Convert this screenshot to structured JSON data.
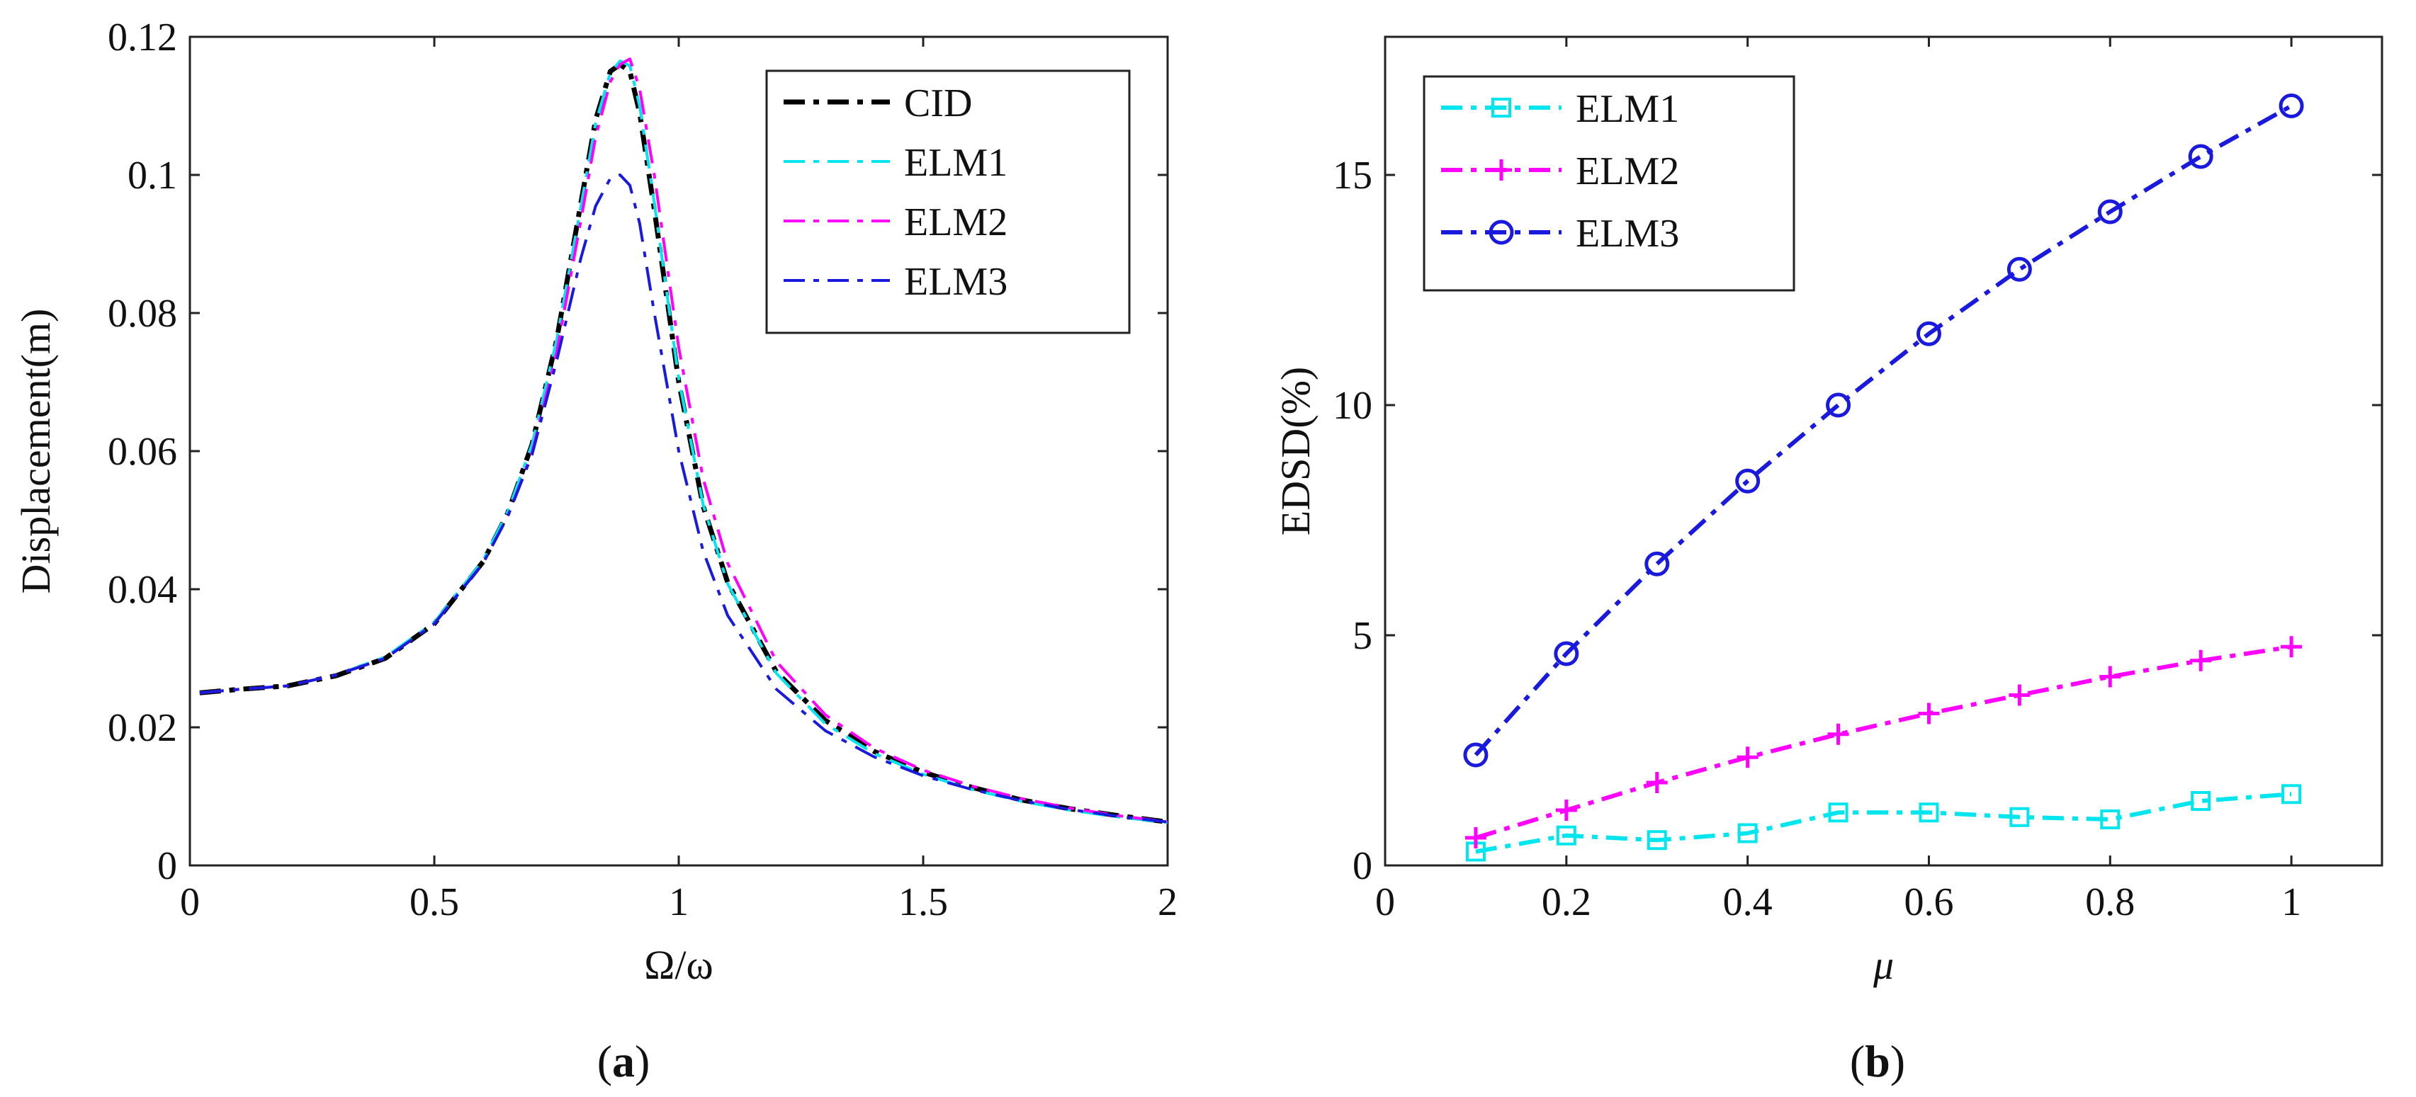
{
  "chart_data": [
    {
      "type": "line",
      "caption_letter": "a",
      "xlabel": "Ω/ω",
      "ylabel": "Displacement(m)",
      "xlim": [
        0,
        2
      ],
      "ylim": [
        0,
        0.12
      ],
      "xticks": [
        0,
        0.5,
        1,
        1.5,
        2
      ],
      "xtick_labels": [
        "0",
        "0.5",
        "1",
        "1.5",
        "2"
      ],
      "yticks": [
        0,
        0.02,
        0.04,
        0.06,
        0.08,
        0.1,
        0.12
      ],
      "ytick_labels": [
        "0",
        "0.02",
        "0.04",
        "0.06",
        "0.08",
        "0.1",
        "0.12"
      ],
      "legend_position": "top-right",
      "grid": false,
      "x": [
        0.02,
        0.1,
        0.2,
        0.3,
        0.4,
        0.5,
        0.6,
        0.65,
        0.7,
        0.75,
        0.8,
        0.83,
        0.86,
        0.88,
        0.9,
        0.92,
        0.95,
        1.0,
        1.05,
        1.1,
        1.2,
        1.3,
        1.4,
        1.5,
        1.6,
        1.7,
        1.8,
        1.9,
        2.0
      ],
      "series": [
        {
          "name": "CID",
          "color": "#000000",
          "dash": "dashdot",
          "width": 7,
          "values": [
            0.025,
            0.0255,
            0.026,
            0.0275,
            0.03,
            0.035,
            0.044,
            0.051,
            0.061,
            0.076,
            0.096,
            0.108,
            0.115,
            0.116,
            0.115,
            0.109,
            0.095,
            0.07,
            0.052,
            0.041,
            0.028,
            0.021,
            0.0165,
            0.0135,
            0.0113,
            0.0095,
            0.0082,
            0.0072,
            0.0063
          ]
        },
        {
          "name": "ELM1",
          "color": "#00e5ee",
          "dash": "dashdot",
          "width": 4,
          "values": [
            0.025,
            0.0255,
            0.026,
            0.0276,
            0.0302,
            0.0352,
            0.0442,
            0.0512,
            0.061,
            0.076,
            0.0955,
            0.1075,
            0.1148,
            0.1165,
            0.1158,
            0.11,
            0.096,
            0.0705,
            0.0522,
            0.0408,
            0.0278,
            0.0205,
            0.0162,
            0.0132,
            0.011,
            0.0093,
            0.008,
            0.007,
            0.0062
          ]
        },
        {
          "name": "ELM2",
          "color": "#ff00ff",
          "dash": "dashdot",
          "width": 4,
          "values": [
            0.025,
            0.0255,
            0.026,
            0.0276,
            0.03,
            0.035,
            0.0438,
            0.0505,
            0.0598,
            0.0742,
            0.0935,
            0.1055,
            0.1135,
            0.116,
            0.1168,
            0.1125,
            0.1,
            0.075,
            0.056,
            0.0438,
            0.0295,
            0.0218,
            0.017,
            0.0138,
            0.0115,
            0.0097,
            0.0083,
            0.0072,
            0.0063
          ]
        },
        {
          "name": "ELM3",
          "color": "#1a1adf",
          "dash": "dashdot",
          "width": 4,
          "values": [
            0.025,
            0.0255,
            0.026,
            0.0276,
            0.03,
            0.035,
            0.0438,
            0.0505,
            0.0595,
            0.073,
            0.088,
            0.0955,
            0.0995,
            0.1,
            0.0985,
            0.093,
            0.08,
            0.06,
            0.0455,
            0.0362,
            0.0255,
            0.0195,
            0.0157,
            0.013,
            0.011,
            0.0094,
            0.0081,
            0.0071,
            0.0063
          ]
        }
      ]
    },
    {
      "type": "line",
      "caption_letter": "b",
      "xlabel": "μ",
      "ylabel": "EDSD(%)",
      "xlim": [
        0,
        1.1
      ],
      "ylim": [
        0,
        18
      ],
      "xticks": [
        0,
        0.2,
        0.4,
        0.6,
        0.8,
        1
      ],
      "xtick_labels": [
        "0",
        "0.2",
        "0.4",
        "0.6",
        "0.8",
        "1"
      ],
      "yticks": [
        0,
        5,
        10,
        15
      ],
      "ytick_labels": [
        "0",
        "5",
        "10",
        "15"
      ],
      "legend_position": "top-left",
      "grid": false,
      "x": [
        0.1,
        0.2,
        0.3,
        0.4,
        0.5,
        0.6,
        0.7,
        0.8,
        0.9,
        1.0
      ],
      "series": [
        {
          "name": "ELM1",
          "color": "#00e5ee",
          "marker": "square",
          "values": [
            0.3,
            0.65,
            0.55,
            0.7,
            1.15,
            1.15,
            1.05,
            1.0,
            1.4,
            1.55
          ]
        },
        {
          "name": "ELM2",
          "color": "#ff00ff",
          "marker": "plus",
          "values": [
            0.6,
            1.2,
            1.8,
            2.35,
            2.85,
            3.3,
            3.7,
            4.1,
            4.45,
            4.75
          ]
        },
        {
          "name": "ELM3",
          "color": "#1a1adf",
          "marker": "circle",
          "values": [
            2.4,
            4.6,
            6.55,
            8.35,
            10.0,
            11.55,
            12.95,
            14.2,
            15.4,
            16.5
          ]
        }
      ]
    }
  ]
}
